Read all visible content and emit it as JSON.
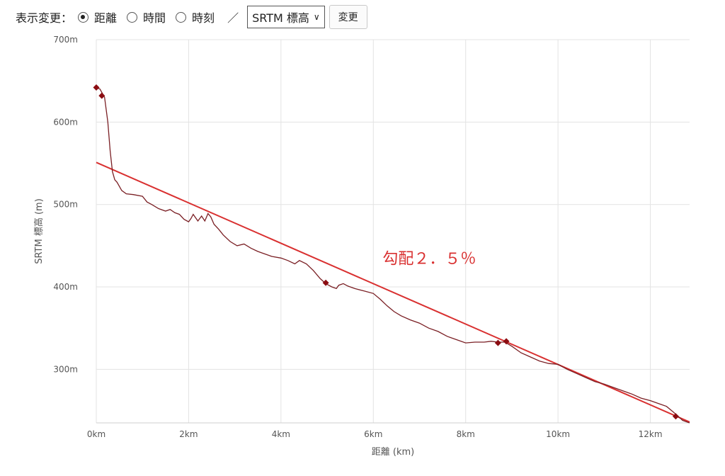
{
  "toolbar": {
    "label": "表示変更：",
    "options": [
      {
        "label": "距離",
        "checked": true
      },
      {
        "label": "時間",
        "checked": false
      },
      {
        "label": "時刻",
        "checked": false
      }
    ],
    "separator": "／",
    "select_value": "SRTM 標高",
    "change_button": "変更"
  },
  "chart_data": {
    "type": "line",
    "xlabel": "距離 (km)",
    "ylabel": "SRTM 標高 (m)",
    "xlim": [
      0,
      12.85
    ],
    "ylim": [
      235,
      700
    ],
    "x_ticks": [
      0,
      2,
      4,
      6,
      8,
      10,
      12
    ],
    "x_tick_labels": [
      "0km",
      "2km",
      "4km",
      "6km",
      "8km",
      "10km",
      "12km"
    ],
    "y_ticks": [
      300,
      400,
      500,
      600,
      700
    ],
    "y_tick_labels": [
      "300m",
      "400m",
      "500m",
      "600m",
      "700m"
    ],
    "grid": true,
    "series": [
      {
        "color": "#7a1f24",
        "x": [
          0,
          0.08,
          0.18,
          0.25,
          0.3,
          0.35,
          0.4,
          0.45,
          0.55,
          0.65,
          0.8,
          1.0,
          1.1,
          1.2,
          1.35,
          1.5,
          1.6,
          1.7,
          1.8,
          1.9,
          2.0,
          2.05,
          2.1,
          2.2,
          2.28,
          2.35,
          2.42,
          2.48,
          2.55,
          2.65,
          2.75,
          2.9,
          3.05,
          3.2,
          3.35,
          3.5,
          3.65,
          3.8,
          4.0,
          4.15,
          4.3,
          4.4,
          4.55,
          4.7,
          4.85,
          4.97,
          5.1,
          5.2,
          5.25,
          5.35,
          5.45,
          5.6,
          5.8,
          6.0,
          6.15,
          6.3,
          6.45,
          6.6,
          6.8,
          7.0,
          7.2,
          7.4,
          7.6,
          7.8,
          8.0,
          8.2,
          8.4,
          8.55,
          8.7,
          8.85,
          9.0,
          9.2,
          9.4,
          9.6,
          9.8,
          10.0,
          10.2,
          10.4,
          10.6,
          10.8,
          11.0,
          11.2,
          11.4,
          11.6,
          11.8,
          12.0,
          12.2,
          12.35,
          12.5,
          12.6,
          12.7,
          12.85
        ],
        "y": [
          642,
          640,
          630,
          600,
          565,
          540,
          530,
          527,
          517,
          513,
          512,
          510,
          503,
          500,
          495,
          492,
          494,
          490,
          488,
          482,
          479,
          483,
          488,
          480,
          486,
          480,
          489,
          485,
          476,
          470,
          463,
          455,
          450,
          452,
          447,
          443,
          440,
          437,
          435,
          432,
          428,
          432,
          428,
          420,
          410,
          404,
          400,
          398,
          402,
          404,
          401,
          398,
          395,
          392,
          385,
          377,
          370,
          365,
          360,
          356,
          350,
          346,
          340,
          336,
          332,
          333,
          333,
          334,
          333,
          333,
          328,
          320,
          315,
          310,
          307,
          306,
          300,
          295,
          290,
          285,
          282,
          278,
          274,
          270,
          265,
          262,
          258,
          255,
          248,
          243,
          238,
          235
        ],
        "markers": [
          {
            "x": 0.0,
            "y": 642
          },
          {
            "x": 0.12,
            "y": 632
          },
          {
            "x": 4.97,
            "y": 405
          },
          {
            "x": 8.7,
            "y": 332
          },
          {
            "x": 8.88,
            "y": 334
          },
          {
            "x": 12.55,
            "y": 243
          }
        ]
      }
    ],
    "trendline": {
      "color": "#d93030",
      "x": [
        0,
        12.85
      ],
      "y": [
        551,
        236
      ]
    },
    "annotations": [
      {
        "text": "勾配２．５％",
        "x": 6.2,
        "y": 428,
        "color": "#d93030"
      }
    ]
  }
}
